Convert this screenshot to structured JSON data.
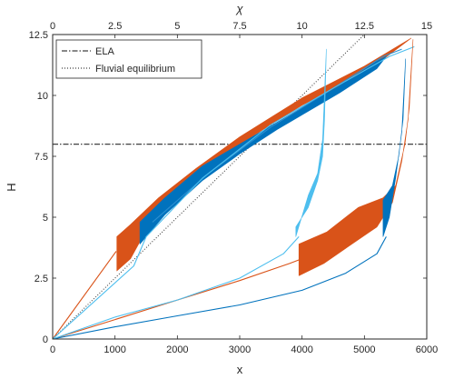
{
  "chart_data": {
    "type": "line",
    "xlabel": "x",
    "ylabel": "H",
    "top_xlabel": "χ",
    "xlim": [
      0,
      6000
    ],
    "ylim": [
      0,
      12.5
    ],
    "top_xlim": [
      0,
      15
    ],
    "x_ticks": [
      "0",
      "1000",
      "2000",
      "3000",
      "4000",
      "5000",
      "6000"
    ],
    "y_ticks": [
      "0",
      "2.5",
      "5",
      "7.5",
      "10",
      "12.5"
    ],
    "top_x_ticks": [
      "0",
      "2.5",
      "5",
      "7.5",
      "10",
      "12.5",
      "15"
    ],
    "grid": false,
    "legend_position": "top-left",
    "colors": {
      "orange": "#d95319",
      "blue": "#0072bd",
      "mid_blue": "#2b8fd1",
      "light_blue": "#4dbeee",
      "reference": "#404040"
    },
    "references": [
      {
        "name": "ELA",
        "style": "dash-dot",
        "type": "horizontal",
        "y": 8
      },
      {
        "name": "Fluvial equilibrium",
        "style": "dotted",
        "type": "line",
        "points": [
          [
            0,
            0
          ],
          [
            5000,
            12.5
          ]
        ]
      }
    ],
    "series": [
      {
        "color": "orange",
        "kind": "line",
        "points": [
          [
            0,
            0
          ],
          [
            1020,
            3.6
          ]
        ]
      },
      {
        "color": "orange",
        "kind": "band",
        "upper": [
          [
            1030,
            4.2
          ],
          [
            1250,
            4.7
          ],
          [
            1700,
            5.8
          ],
          [
            2300,
            7.0
          ],
          [
            3000,
            8.3
          ],
          [
            4000,
            9.9
          ],
          [
            5000,
            11.2
          ],
          [
            5750,
            12.35
          ]
        ],
        "lower": [
          [
            5750,
            12.35
          ],
          [
            5000,
            10.9
          ],
          [
            4000,
            9.6
          ],
          [
            3000,
            8.0
          ],
          [
            2300,
            6.7
          ],
          [
            1700,
            5.4
          ],
          [
            1250,
            3.3
          ],
          [
            1030,
            2.8
          ]
        ]
      },
      {
        "color": "blue",
        "kind": "band",
        "upper": [
          [
            1400,
            4.8
          ],
          [
            1800,
            5.8
          ],
          [
            2400,
            7.1
          ],
          [
            3000,
            8.0
          ],
          [
            3600,
            8.9
          ],
          [
            4000,
            9.5
          ],
          [
            4600,
            10.4
          ],
          [
            5200,
            11.4
          ],
          [
            5350,
            11.6
          ]
        ],
        "lower": [
          [
            5350,
            11.6
          ],
          [
            5200,
            11.1
          ],
          [
            4600,
            10.1
          ],
          [
            4000,
            9.2
          ],
          [
            3600,
            8.6
          ],
          [
            3000,
            7.6
          ],
          [
            2400,
            6.5
          ],
          [
            1800,
            5.1
          ],
          [
            1400,
            3.9
          ]
        ]
      },
      {
        "color": "mid_blue",
        "kind": "line",
        "points": [
          [
            1600,
            4.8
          ],
          [
            2500,
            6.8
          ],
          [
            3500,
            8.7
          ],
          [
            4500,
            10.3
          ],
          [
            5300,
            11.6
          ],
          [
            5600,
            11.9
          ]
        ]
      },
      {
        "color": "light_blue",
        "kind": "line",
        "points": [
          [
            0,
            0
          ],
          [
            1300,
            3.0
          ],
          [
            1500,
            4.2
          ],
          [
            2400,
            6.6
          ],
          [
            3500,
            8.8
          ],
          [
            4500,
            10.3
          ],
          [
            5400,
            11.6
          ],
          [
            5800,
            12.0
          ]
        ]
      },
      {
        "color": "orange",
        "kind": "line",
        "points": [
          [
            0,
            0
          ],
          [
            1000,
            0.8
          ],
          [
            2000,
            1.6
          ],
          [
            3000,
            2.4
          ],
          [
            3800,
            3.1
          ],
          [
            4000,
            3.3
          ]
        ]
      },
      {
        "color": "orange",
        "kind": "band",
        "upper": [
          [
            3950,
            3.9
          ],
          [
            4400,
            4.4
          ],
          [
            4900,
            5.4
          ],
          [
            5300,
            5.8
          ],
          [
            5500,
            6.3
          ],
          [
            5650,
            8.0
          ],
          [
            5720,
            9.5
          ],
          [
            5780,
            12.3
          ]
        ],
        "lower": [
          [
            5780,
            12.3
          ],
          [
            5700,
            9.0
          ],
          [
            5600,
            7.3
          ],
          [
            5450,
            5.6
          ],
          [
            5200,
            4.6
          ],
          [
            4800,
            3.9
          ],
          [
            4350,
            3.1
          ],
          [
            3950,
            2.6
          ]
        ]
      },
      {
        "color": "blue",
        "kind": "line",
        "points": [
          [
            0,
            0
          ],
          [
            1000,
            0.5
          ],
          [
            2000,
            0.95
          ],
          [
            3000,
            1.4
          ],
          [
            4000,
            2.0
          ],
          [
            4700,
            2.7
          ],
          [
            5200,
            3.5
          ],
          [
            5350,
            4.2
          ]
        ]
      },
      {
        "color": "blue",
        "kind": "band",
        "upper": [
          [
            5300,
            5.7
          ],
          [
            5450,
            6.3
          ],
          [
            5550,
            7.5
          ],
          [
            5620,
            9.0
          ],
          [
            5660,
            11.5
          ]
        ],
        "lower": [
          [
            5660,
            11.5
          ],
          [
            5600,
            8.5
          ],
          [
            5500,
            6.6
          ],
          [
            5400,
            5.0
          ],
          [
            5300,
            4.2
          ]
        ]
      },
      {
        "color": "light_blue",
        "kind": "line",
        "points": [
          [
            0,
            0
          ],
          [
            1000,
            0.9
          ],
          [
            2000,
            1.6
          ],
          [
            3000,
            2.5
          ],
          [
            3700,
            3.5
          ],
          [
            3950,
            4.2
          ]
        ]
      },
      {
        "color": "light_blue",
        "kind": "band",
        "upper": [
          [
            3900,
            4.6
          ],
          [
            4100,
            5.4
          ],
          [
            4250,
            6.5
          ],
          [
            4330,
            7.5
          ],
          [
            4360,
            9.0
          ],
          [
            4390,
            11.9
          ]
        ],
        "lower": [
          [
            4390,
            11.9
          ],
          [
            4330,
            8.2
          ],
          [
            4250,
            6.8
          ],
          [
            4100,
            5.9
          ],
          [
            3900,
            4.2
          ]
        ]
      }
    ]
  }
}
